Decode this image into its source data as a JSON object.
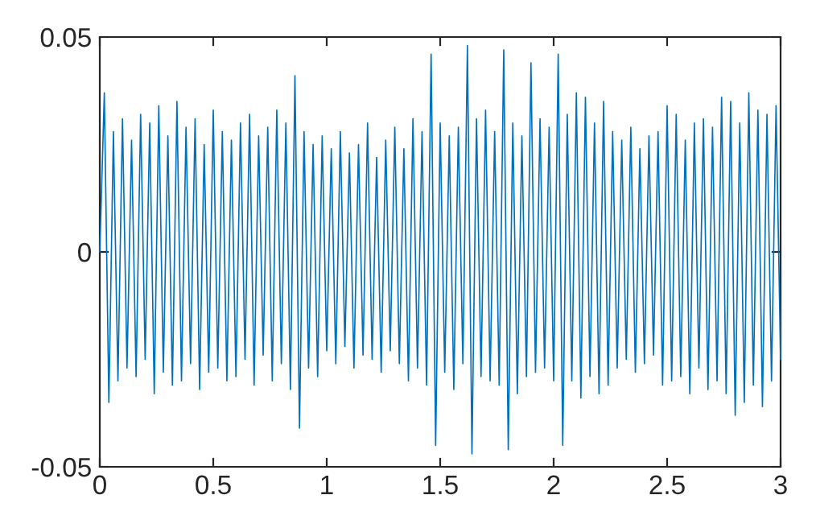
{
  "chart_data": {
    "type": "line",
    "x": [
      0,
      0.02,
      0.04,
      0.06,
      0.08,
      0.1,
      0.12,
      0.14,
      0.16,
      0.18,
      0.2,
      0.22,
      0.24,
      0.26,
      0.28,
      0.3,
      0.32,
      0.34,
      0.36,
      0.38,
      0.4,
      0.42,
      0.44,
      0.46,
      0.48,
      0.5,
      0.52,
      0.54,
      0.56,
      0.58,
      0.6,
      0.62,
      0.64,
      0.66,
      0.68,
      0.7,
      0.72,
      0.74,
      0.76,
      0.78,
      0.8,
      0.82,
      0.84,
      0.86,
      0.88,
      0.9,
      0.92,
      0.94,
      0.96,
      0.98,
      1,
      1.02,
      1.04,
      1.06,
      1.08,
      1.1,
      1.12,
      1.14,
      1.16,
      1.18,
      1.2,
      1.22,
      1.24,
      1.26,
      1.28,
      1.3,
      1.32,
      1.34,
      1.36,
      1.38,
      1.4,
      1.42,
      1.44,
      1.46,
      1.48,
      1.5,
      1.52,
      1.54,
      1.56,
      1.58,
      1.6,
      1.62,
      1.64,
      1.66,
      1.68,
      1.7,
      1.72,
      1.74,
      1.76,
      1.78,
      1.8,
      1.82,
      1.84,
      1.86,
      1.88,
      1.9,
      1.92,
      1.94,
      1.96,
      1.98,
      2,
      2.02,
      2.04,
      2.06,
      2.08,
      2.1,
      2.12,
      2.14,
      2.16,
      2.18,
      2.2,
      2.22,
      2.24,
      2.26,
      2.28,
      2.3,
      2.32,
      2.34,
      2.36,
      2.38,
      2.4,
      2.42,
      2.44,
      2.46,
      2.48,
      2.5,
      2.52,
      2.54,
      2.56,
      2.58,
      2.6,
      2.62,
      2.64,
      2.66,
      2.68,
      2.7,
      2.72,
      2.74,
      2.76,
      2.78,
      2.8,
      2.82,
      2.84,
      2.86,
      2.88,
      2.9,
      2.92,
      2.94,
      2.96,
      2.98,
      3
    ],
    "series": [
      {
        "color": "#0072bd",
        "values": [
          0,
          0.037,
          -0.035,
          0.028,
          -0.03,
          0.031,
          -0.027,
          0.026,
          -0.029,
          0.032,
          -0.025,
          0.03,
          -0.033,
          0.034,
          -0.028,
          0.027,
          -0.031,
          0.035,
          -0.03,
          0.029,
          -0.026,
          0.031,
          -0.032,
          0.025,
          -0.028,
          0.033,
          -0.027,
          0.028,
          -0.03,
          0.026,
          -0.029,
          0.03,
          -0.025,
          0.032,
          -0.031,
          0.027,
          -0.024,
          0.029,
          -0.03,
          0.033,
          -0.026,
          0.03,
          -0.032,
          0.041,
          -0.041,
          0.028,
          -0.027,
          0.025,
          -0.029,
          0.027,
          -0.023,
          0.024,
          -0.026,
          0.028,
          -0.022,
          0.023,
          -0.027,
          0.025,
          -0.024,
          0.03,
          -0.025,
          0.022,
          -0.028,
          0.026,
          -0.023,
          0.029,
          -0.026,
          0.024,
          -0.03,
          0.031,
          -0.027,
          0.028,
          -0.031,
          0.046,
          -0.045,
          0.03,
          -0.028,
          0.027,
          -0.032,
          0.029,
          -0.026,
          0.048,
          -0.047,
          0.031,
          -0.029,
          0.033,
          -0.03,
          0.028,
          -0.031,
          0.047,
          -0.046,
          0.03,
          -0.033,
          0.027,
          -0.029,
          0.044,
          -0.028,
          0.031,
          -0.027,
          0.029,
          -0.03,
          0.046,
          -0.045,
          0.032,
          -0.03,
          0.037,
          -0.034,
          0.036,
          -0.029,
          0.03,
          -0.033,
          0.035,
          -0.031,
          0.028,
          -0.027,
          0.026,
          -0.025,
          0.029,
          -0.028,
          0.024,
          -0.026,
          0.027,
          -0.024,
          0.028,
          -0.031,
          0.034,
          -0.03,
          0.032,
          -0.029,
          0.026,
          -0.033,
          0.03,
          -0.027,
          0.031,
          -0.032,
          0.029,
          -0.03,
          0.036,
          -0.033,
          0.035,
          -0.038,
          0.03,
          -0.035,
          0.037,
          -0.031,
          0.033,
          -0.036,
          0.032,
          -0.03,
          0.034,
          -0.025
        ]
      }
    ],
    "xlim": [
      0,
      3
    ],
    "xticks": [
      0,
      0.5,
      1,
      1.5,
      2,
      2.5,
      3
    ],
    "ylim": [
      -0.05,
      0.05
    ],
    "yticks": [
      -0.05,
      0,
      0.05
    ],
    "grid": false,
    "legend": false,
    "marker": "none",
    "line_style": "solid"
  }
}
